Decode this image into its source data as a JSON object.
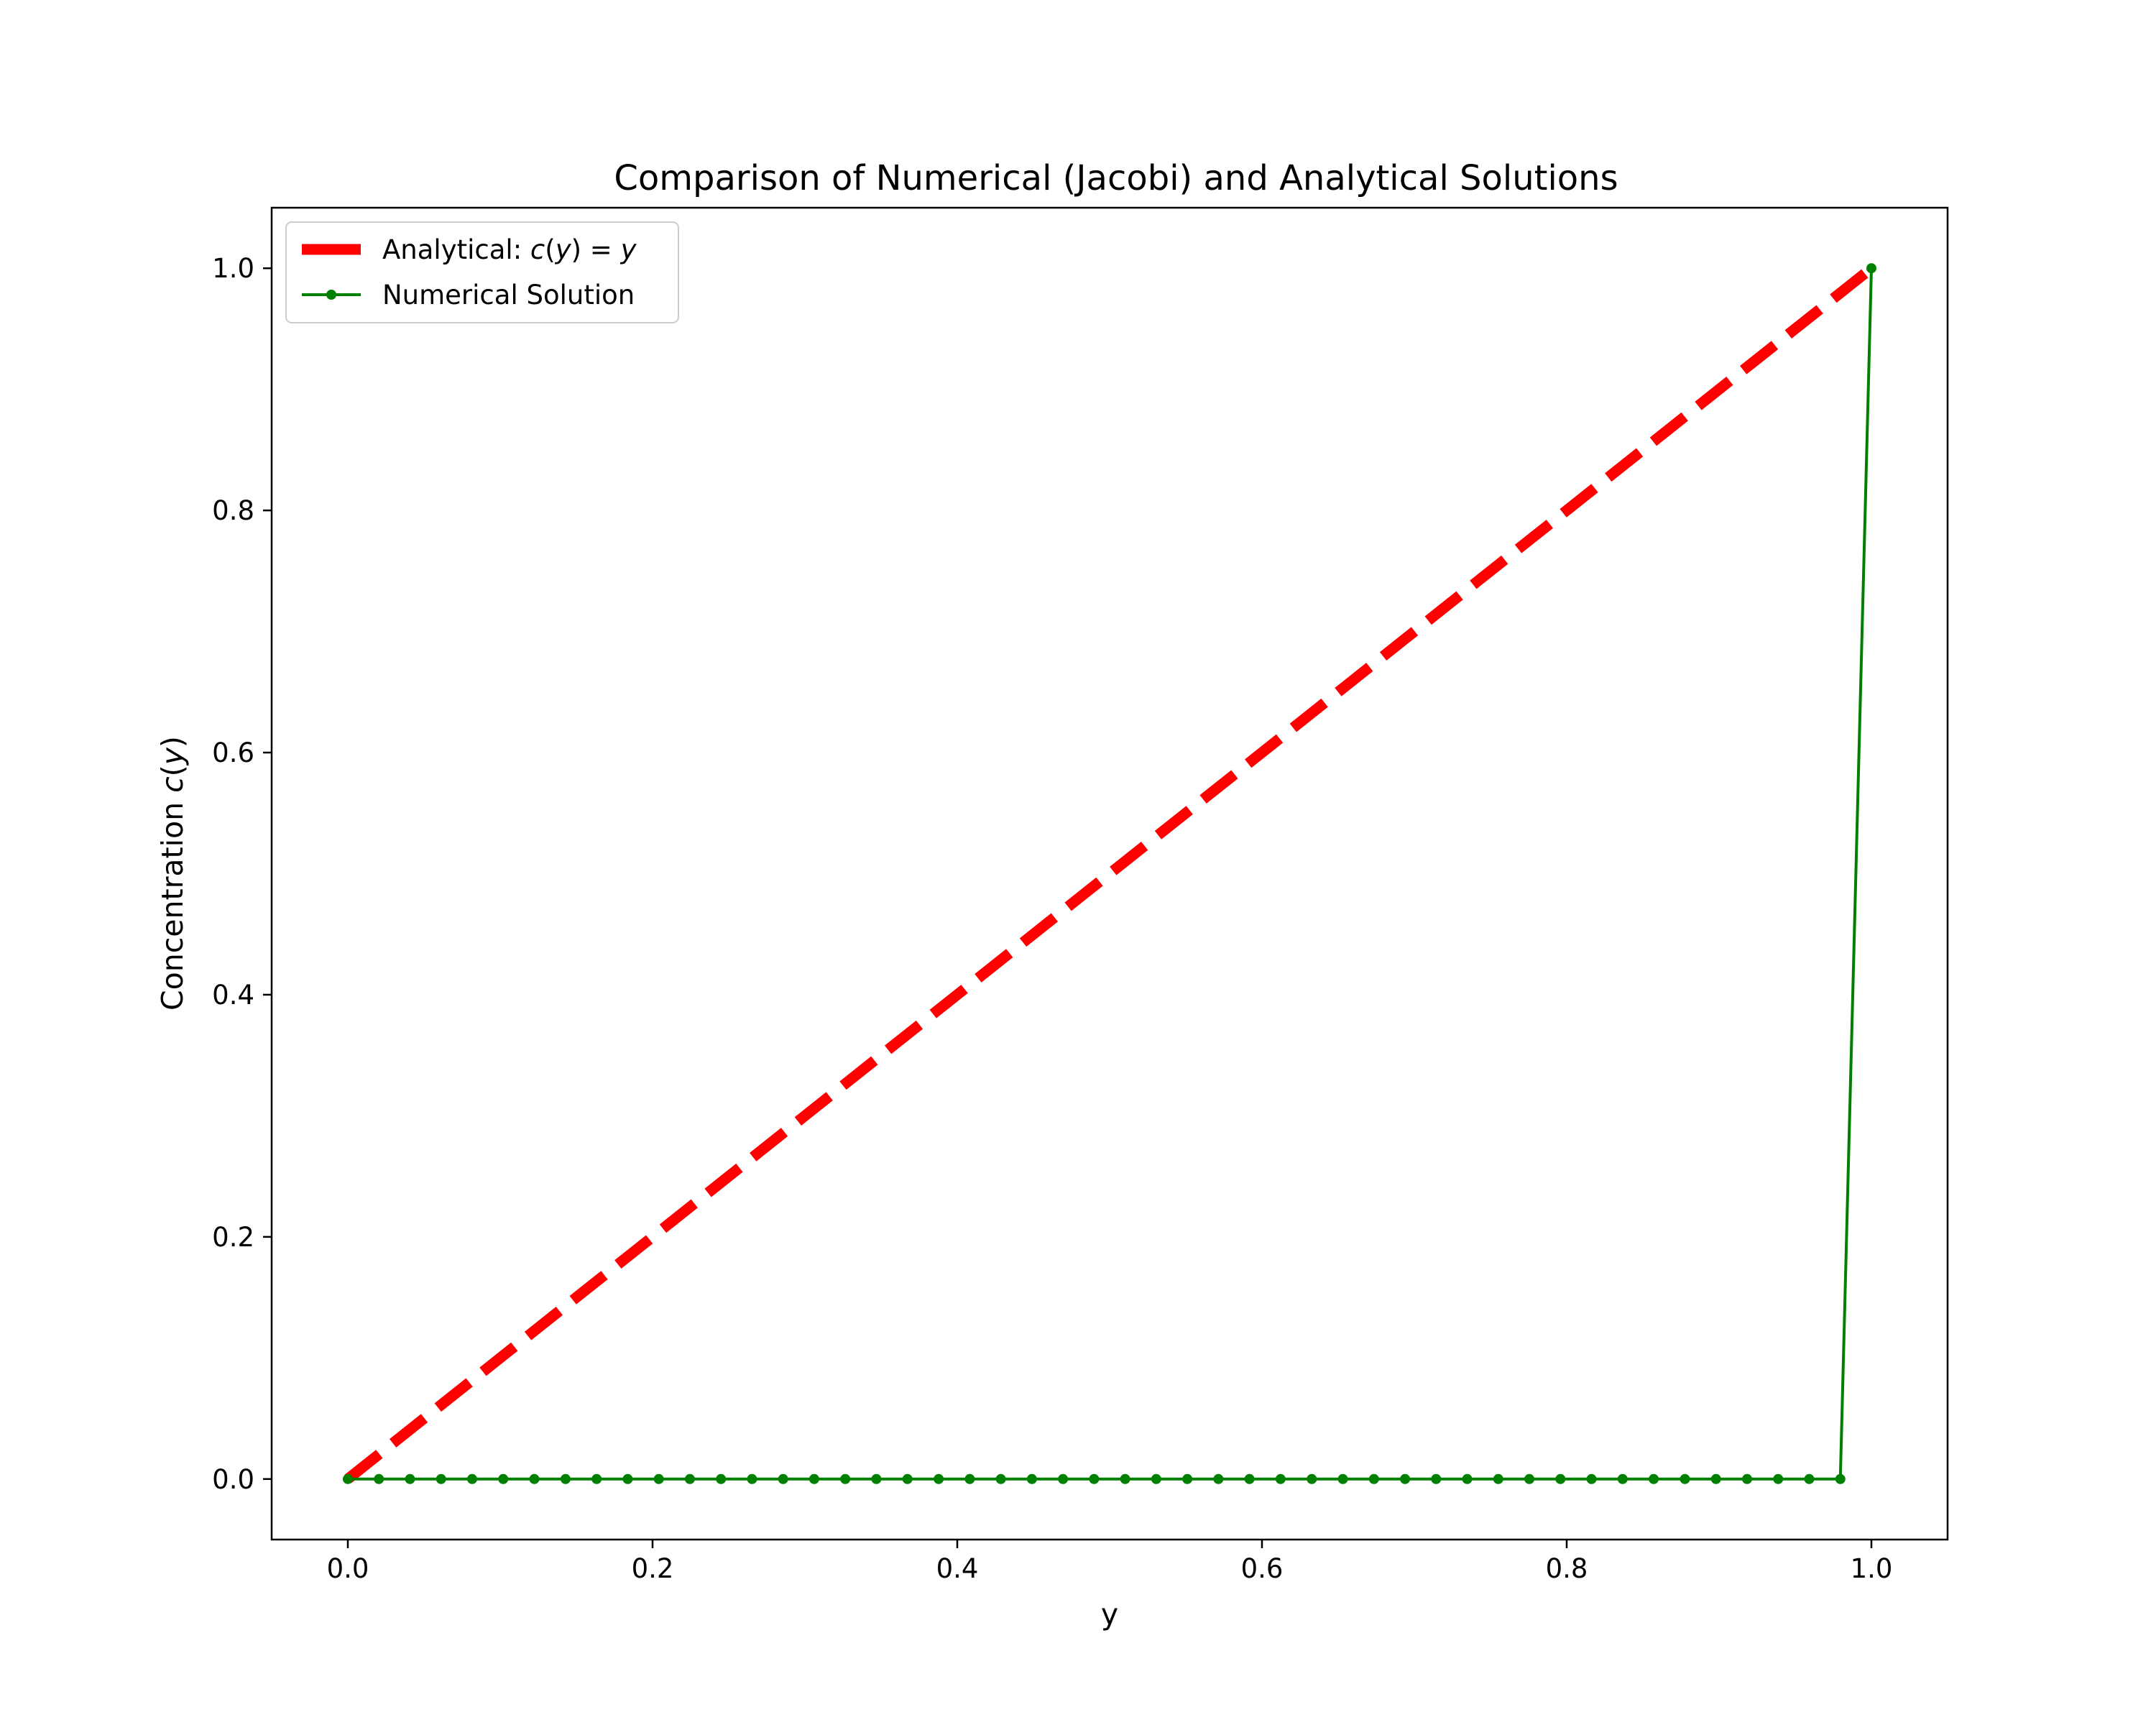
{
  "chart_data": {
    "type": "line",
    "title": "Comparison of Numerical (Jacobi) and Analytical Solutions",
    "xlabel": "y",
    "ylabel": "Concentration c(y)",
    "xlim": [
      -0.05,
      1.05
    ],
    "ylim": [
      -0.05,
      1.05
    ],
    "grid": false,
    "legend_position": "top-left",
    "x_ticks": [
      "0.0",
      "0.2",
      "0.4",
      "0.6",
      "0.8",
      "1.0"
    ],
    "y_ticks": [
      "0.0",
      "0.2",
      "0.4",
      "0.6",
      "0.8",
      "1.0"
    ],
    "series": [
      {
        "name": "Analytical: c(y) = y",
        "color": "#ff0000",
        "style": "dashed",
        "x": [
          0.0,
          1.0
        ],
        "y": [
          0.0,
          1.0
        ]
      },
      {
        "name": "Numerical Solution",
        "color": "#008000",
        "style": "solid-with-point-markers",
        "x": [
          0.0,
          0.0204,
          0.0408,
          0.0612,
          0.0816,
          0.102,
          0.1224,
          0.1429,
          0.1633,
          0.1837,
          0.2041,
          0.2245,
          0.2449,
          0.2653,
          0.2857,
          0.3061,
          0.3265,
          0.3469,
          0.3673,
          0.3878,
          0.4082,
          0.4286,
          0.449,
          0.4694,
          0.4898,
          0.5102,
          0.5306,
          0.551,
          0.5714,
          0.5918,
          0.6122,
          0.6327,
          0.6531,
          0.6735,
          0.6939,
          0.7143,
          0.7347,
          0.7551,
          0.7755,
          0.7959,
          0.8163,
          0.8367,
          0.8571,
          0.8776,
          0.898,
          0.9184,
          0.9388,
          0.9592,
          0.9796,
          1.0
        ],
        "y": [
          0.0,
          0.0,
          0.0,
          0.0,
          0.0,
          0.0,
          0.0,
          0.0,
          0.0,
          0.0,
          0.0,
          0.0,
          0.0,
          0.0,
          0.0,
          0.0,
          0.0,
          0.0,
          0.0,
          0.0,
          0.0,
          0.0,
          0.0,
          0.0,
          0.0,
          0.0,
          0.0,
          0.0,
          0.0,
          0.0,
          0.0,
          0.0,
          0.0,
          0.0,
          0.0,
          0.0,
          0.0,
          0.0,
          0.0,
          0.0,
          0.0,
          0.0,
          0.0,
          0.0,
          0.0,
          0.0,
          0.0,
          0.0,
          0.0,
          1.0
        ]
      }
    ]
  }
}
